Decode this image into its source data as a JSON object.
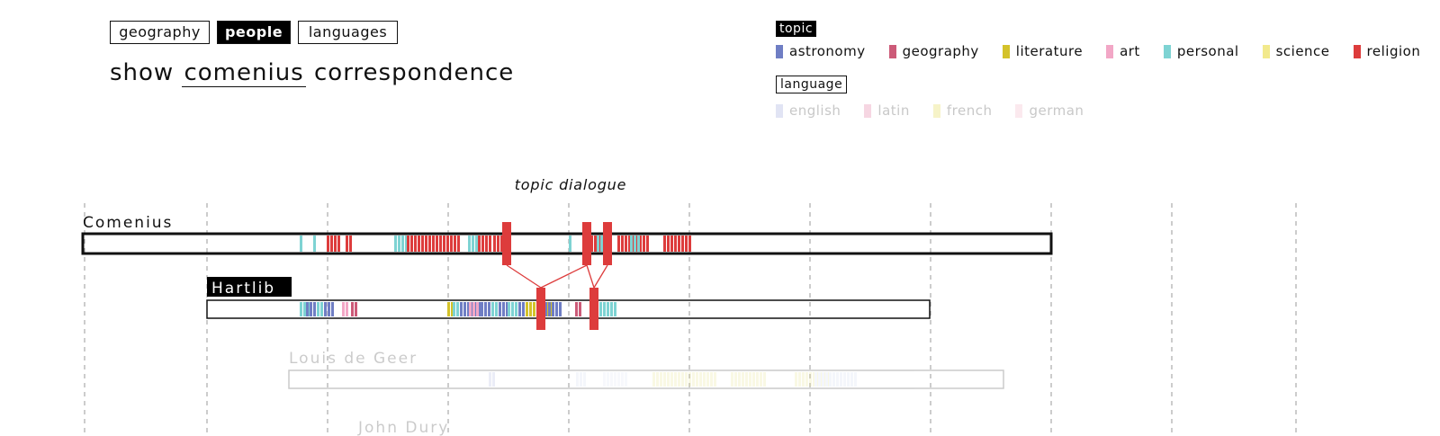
{
  "tabs": [
    {
      "label": "geography",
      "active": false
    },
    {
      "label": "people",
      "active": true
    },
    {
      "label": "languages",
      "active": false
    }
  ],
  "heading": {
    "prefix": "show",
    "selection": "comenius",
    "suffix": "correspondence"
  },
  "filters": {
    "topic_label": "topic",
    "topics": [
      {
        "name": "astronomy",
        "color": "#6f7ec4"
      },
      {
        "name": "geography",
        "color": "#cc5a78"
      },
      {
        "name": "literature",
        "color": "#d4c22a"
      },
      {
        "name": "art",
        "color": "#f2a7c6"
      },
      {
        "name": "personal",
        "color": "#7ed3d3"
      },
      {
        "name": "science",
        "color": "#f2e98c"
      },
      {
        "name": "religion",
        "color": "#dd3c3c"
      }
    ],
    "language_label": "language",
    "languages": [
      {
        "name": "english",
        "color": "#e1e4f4"
      },
      {
        "name": "latin",
        "color": "#f6d6e2"
      },
      {
        "name": "french",
        "color": "#f6f3c8"
      },
      {
        "name": "german",
        "color": "#fbe9ee"
      }
    ]
  },
  "chart": {
    "annotation": "topic dialogue",
    "timelines": [
      {
        "name": "Comenius",
        "label_style": "plain",
        "faded": false,
        "letters": [
          {
            "topic": "personal",
            "n": 1
          },
          {
            "topic": "personal",
            "n": 1
          },
          {
            "topic": "religion",
            "n": 4
          },
          {
            "topic": "religion",
            "n": 2
          },
          {
            "topic": "personal",
            "n": 4
          },
          {
            "topic": "religion",
            "n": 15
          },
          {
            "topic": "personal",
            "n": 3
          },
          {
            "topic": "religion",
            "n": 4
          },
          {
            "topic": "religion",
            "n": 5
          },
          {
            "topic": "personal",
            "n": 1
          },
          {
            "topic": "religion",
            "n": 6
          },
          {
            "topic": "personal",
            "n": 3
          },
          {
            "topic": "religion",
            "n": 2
          },
          {
            "topic": "religion",
            "n": 9
          },
          {
            "topic": "personal",
            "n": 3
          },
          {
            "topic": "religion",
            "n": 8
          }
        ]
      },
      {
        "name": "Hartlib",
        "label_style": "highlight",
        "faded": false,
        "letters": [
          {
            "topic": "personal",
            "n": 3
          },
          {
            "topic": "astronomy",
            "n": 3
          },
          {
            "topic": "personal",
            "n": 2
          },
          {
            "topic": "astronomy",
            "n": 3
          },
          {
            "topic": "art",
            "n": 2
          },
          {
            "topic": "geography",
            "n": 2
          },
          {
            "topic": "literature",
            "n": 2
          },
          {
            "topic": "personal",
            "n": 3
          },
          {
            "topic": "astronomy",
            "n": 6
          },
          {
            "topic": "art",
            "n": 3
          },
          {
            "topic": "astronomy",
            "n": 8
          },
          {
            "topic": "personal",
            "n": 2
          },
          {
            "topic": "personal",
            "n": 6
          },
          {
            "topic": "astronomy",
            "n": 7
          },
          {
            "topic": "literature",
            "n": 8
          },
          {
            "topic": "astronomy",
            "n": 5
          },
          {
            "topic": "geography",
            "n": 2
          },
          {
            "topic": "personal",
            "n": 5
          }
        ]
      },
      {
        "name": "Louis de Geer",
        "label_style": "plain",
        "faded": true,
        "letters": []
      },
      {
        "name": "John Dury",
        "label_style": "plain",
        "faded": true,
        "letters": []
      }
    ],
    "dialogue_links": [
      {
        "from": "Comenius",
        "to": "Hartlib"
      },
      {
        "from": "Comenius",
        "to": "Hartlib"
      },
      {
        "from": "Comenius",
        "to": "Hartlib"
      }
    ]
  }
}
